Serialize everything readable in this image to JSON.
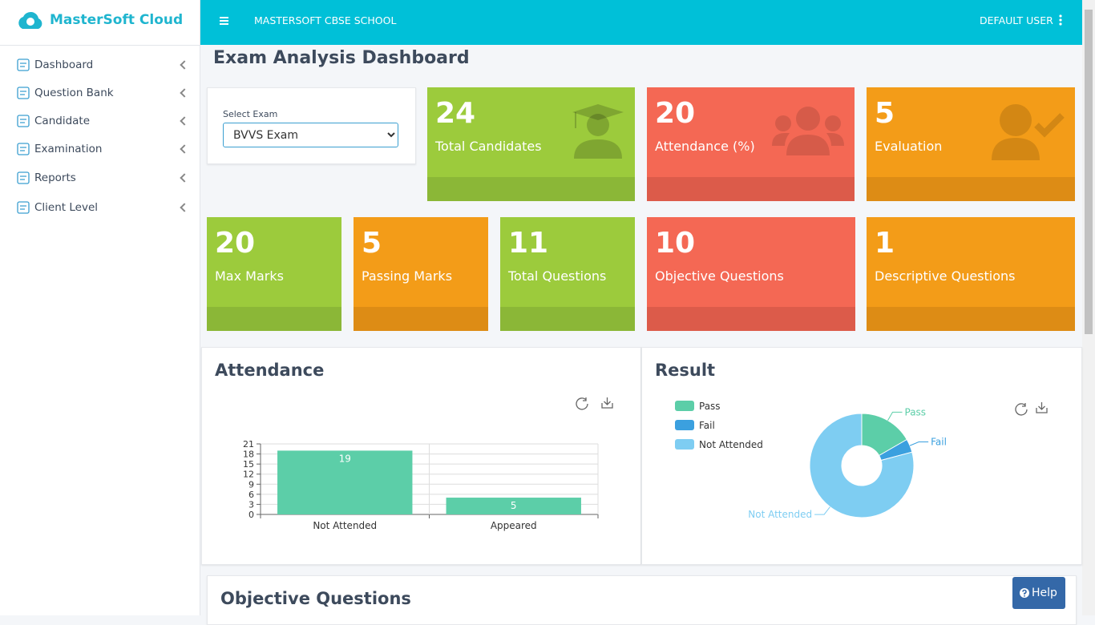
{
  "header": {
    "brand": "MasterSoft Cloud",
    "school": "MASTERSOFT CBSE SCHOOL",
    "user": "DEFAULT USER"
  },
  "sidebar": {
    "items": [
      "Dashboard",
      "Question Bank",
      "Candidate",
      "Examination",
      "Reports",
      "Client Level"
    ]
  },
  "page": {
    "title": "Exam Analysis Dashboard",
    "select_label": "Select Exam",
    "selected_exam": "BVVS Exam"
  },
  "stats": [
    {
      "value": 24,
      "label": "Total Candidates"
    },
    {
      "value": 20,
      "label": "Attendance (%)"
    },
    {
      "value": 5,
      "label": "Evaluation"
    },
    {
      "value": 20,
      "label": "Max Marks"
    },
    {
      "value": 5,
      "label": "Passing Marks"
    },
    {
      "value": 11,
      "label": "Total Questions"
    },
    {
      "value": 10,
      "label": "Objective Questions"
    },
    {
      "value": 1,
      "label": "Descriptive Questions"
    }
  ],
  "chart_data": [
    {
      "type": "bar",
      "title": "Attendance",
      "categories": [
        "Not Attended",
        "Appeared"
      ],
      "values": [
        19,
        5
      ],
      "color": "#5ccea8",
      "ylim": [
        0,
        21
      ],
      "yticks": [
        0,
        3,
        6,
        9,
        12,
        15,
        18,
        21
      ],
      "grid": true
    },
    {
      "type": "pie",
      "title": "Result",
      "categories": [
        "Pass",
        "Fail",
        "Not Attended"
      ],
      "values": [
        4,
        1,
        19
      ],
      "colors": [
        "#5ccea8",
        "#3ba0df",
        "#7ecdf2"
      ],
      "legend": "top-left"
    }
  ],
  "section": {
    "title": "Objective Questions"
  },
  "help": {
    "label": "Help"
  }
}
